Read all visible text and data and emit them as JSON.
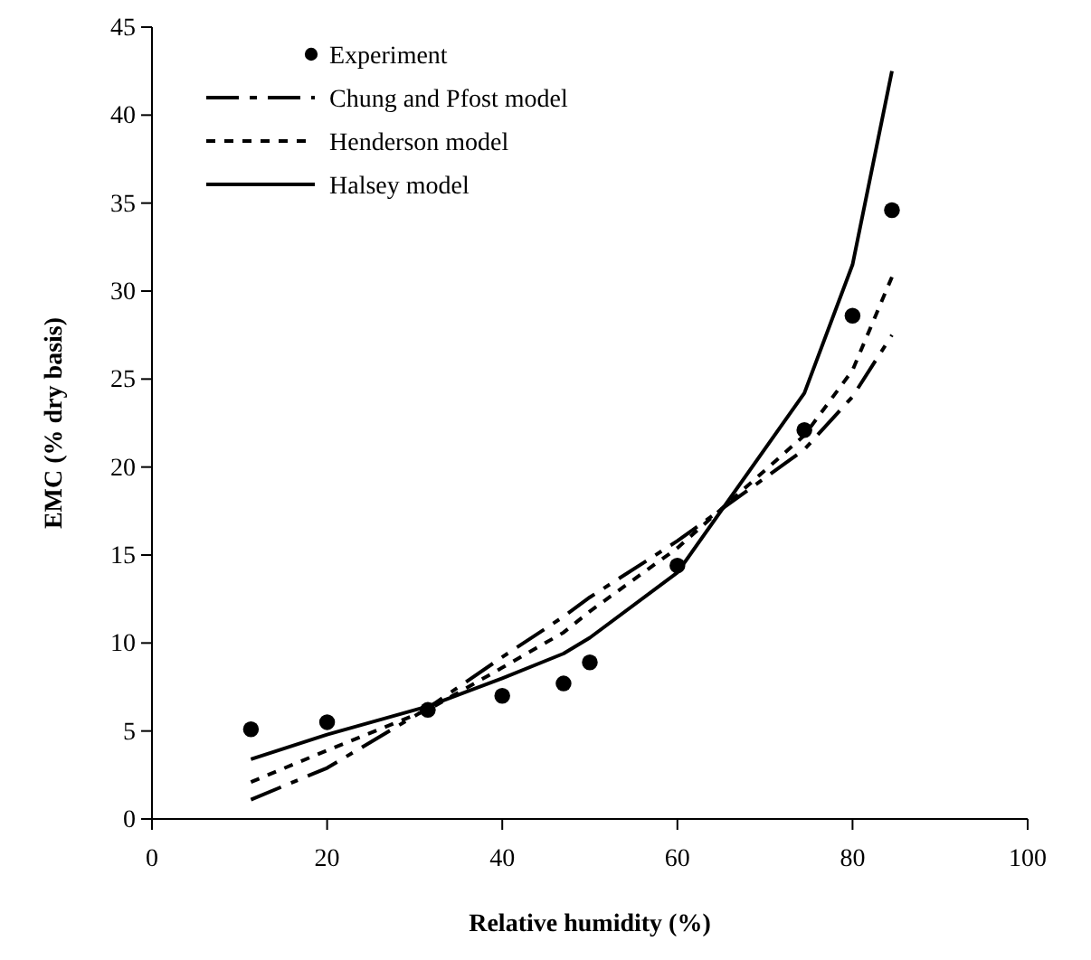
{
  "chart_data": {
    "type": "line",
    "xlabel": "Relative humidity (%)",
    "ylabel": "EMC (% dry basis)",
    "x": [
      11.3,
      20,
      31.5,
      40,
      47,
      50,
      60,
      74.5,
      80,
      84.5
    ],
    "xlim": [
      0,
      100
    ],
    "xticks": [
      0,
      20,
      40,
      60,
      80,
      100
    ],
    "ylim": [
      0,
      45
    ],
    "yticks": [
      0,
      5,
      10,
      15,
      20,
      25,
      30,
      35,
      40,
      45
    ],
    "grid": false,
    "legend": "top left",
    "series": [
      {
        "name": "Experiment",
        "type": "scatter",
        "marker": "circle",
        "color": "#000000",
        "values": [
          5.1,
          5.5,
          6.2,
          7.0,
          7.7,
          8.9,
          14.4,
          22.1,
          28.6,
          34.6
        ]
      },
      {
        "name": "Chung and Pfost model",
        "color": "#000000",
        "line_style": "longdash",
        "values": [
          1.1,
          2.9,
          6.3,
          9.2,
          11.5,
          12.6,
          15.8,
          21.0,
          24.0,
          27.5
        ]
      },
      {
        "name": "Henderson  model",
        "color": "#000000",
        "line_style": "dashed",
        "values": [
          2.1,
          3.9,
          6.2,
          8.6,
          10.6,
          11.8,
          15.4,
          21.8,
          25.5,
          30.8
        ]
      },
      {
        "name": "Halsey model",
        "color": "#000000",
        "line_style": "solid",
        "values": [
          3.4,
          4.8,
          6.4,
          8.0,
          9.4,
          10.3,
          14.0,
          24.2,
          31.5,
          42.5
        ]
      }
    ]
  }
}
